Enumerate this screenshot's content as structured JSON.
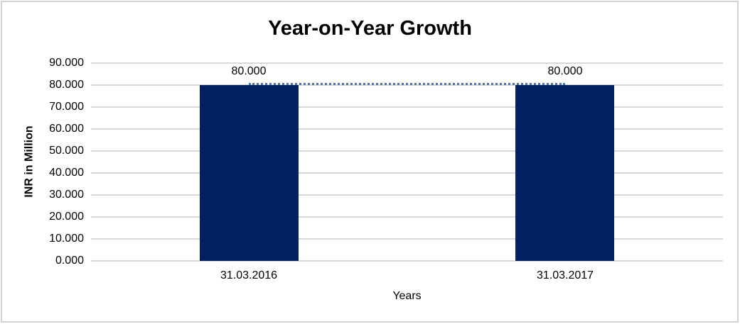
{
  "window": {
    "background": "#FFFFFF",
    "frame_border_color": "#D2D2D2"
  },
  "chart_data": {
    "type": "bar",
    "title": "Year-on-Year Growth",
    "xlabel": "Years",
    "ylabel": "INR in Million",
    "categories": [
      "31.03.2016",
      "31.03.2017"
    ],
    "series": [
      {
        "name": "INR in Million",
        "values": [
          80,
          80
        ]
      }
    ],
    "data_labels": [
      "80.000",
      "80.000"
    ],
    "y_tick_labels": [
      "0.000",
      "10.000",
      "20.000",
      "30.000",
      "40.000",
      "50.000",
      "60.000",
      "70.000",
      "80.000",
      "90.000"
    ],
    "ylim": [
      0,
      90
    ],
    "y_tick_step": 10,
    "grid": true,
    "legend_position": "none",
    "trendline": {
      "style": "dotted",
      "color": "#4472C4",
      "from_category": "31.03.2016",
      "to_category": "31.03.2017",
      "value": 80
    },
    "colors": {
      "bar": "#032160",
      "gridline": "#D9D9D9",
      "trendline": "#4472C4",
      "text": "#000000"
    }
  }
}
